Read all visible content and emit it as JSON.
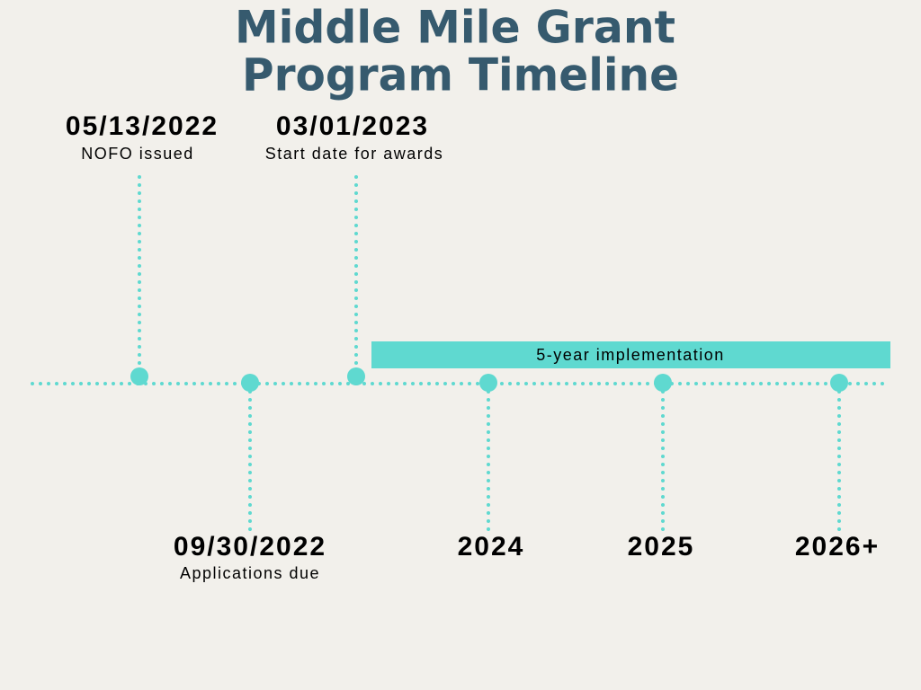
{
  "header": {
    "title_lines": [
      "Middle Mile Grant",
      "Program Timeline"
    ]
  },
  "events": [
    {
      "date": "05/13/2022",
      "label": "NOFO issued"
    },
    {
      "date": "09/30/2022",
      "label": "Applications due"
    },
    {
      "date": "03/01/2023",
      "label": "Start date for awards"
    },
    {
      "date": "2024"
    },
    {
      "date": "2025"
    },
    {
      "date": "2026+"
    }
  ],
  "band": {
    "label": "5-year implementation"
  }
}
